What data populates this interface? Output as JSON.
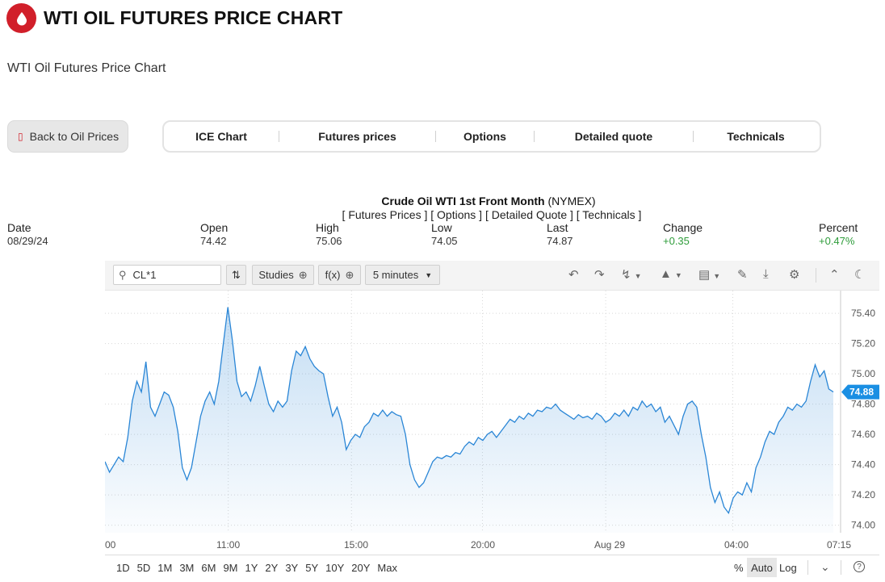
{
  "header": {
    "logo_icon": "oil-drop-icon",
    "title": "WTI OIL FUTURES PRICE CHART",
    "subtitle": "WTI Oil Futures Price Chart"
  },
  "nav": {
    "back_label": "Back to Oil Prices",
    "back_icon": "back-arrow-icon",
    "tabs": [
      "ICE Chart",
      "Futures prices",
      "Options",
      "Detailed quote",
      "Technicals"
    ]
  },
  "quote": {
    "title_bold": "Crude Oil WTI 1st Front Month",
    "title_suffix": "(NYMEX)",
    "links": "[ Futures Prices ] [ Options ] [ Detailed Quote ] [ Technicals ]",
    "columns": [
      {
        "label": "Date",
        "value": "08/29/24"
      },
      {
        "label": "Open",
        "value": "74.42"
      },
      {
        "label": "High",
        "value": "75.06"
      },
      {
        "label": "Low",
        "value": "74.05"
      },
      {
        "label": "Last",
        "value": "74.87"
      },
      {
        "label": "Change",
        "value": "+0.35"
      },
      {
        "label": "Percent",
        "value": "+0.47%"
      }
    ],
    "positive_color": "#2e9c3a"
  },
  "toolbar": {
    "symbol": "CL*1",
    "studies_label": "Studies",
    "fx_label": "f(x)",
    "interval_label": "5 minutes",
    "icons": [
      "search-icon",
      "randomize-icon",
      "add-icon",
      "undo-icon",
      "redo-icon",
      "lightning-icon",
      "chart-type-icon",
      "layout-icon",
      "pencil-icon",
      "download-icon",
      "settings-icon",
      "collapse-icon",
      "dark-mode-icon"
    ]
  },
  "chart_data": {
    "type": "area",
    "ylim": [
      73.95,
      75.55
    ],
    "yticks": [
      "75.40",
      "75.20",
      "75.00",
      "74.80",
      "74.60",
      "74.40",
      "74.20",
      "74.00"
    ],
    "xticks": [
      "00",
      "11:00",
      "15:00",
      "20:00",
      "Aug 29",
      "04:00",
      "07:15"
    ],
    "last_price": "74.88",
    "line_color": "#2a86d6",
    "values": [
      74.42,
      74.35,
      74.4,
      74.45,
      74.42,
      74.58,
      74.82,
      74.95,
      74.88,
      75.08,
      74.78,
      74.72,
      74.8,
      74.88,
      74.86,
      74.78,
      74.62,
      74.38,
      74.3,
      74.38,
      74.55,
      74.72,
      74.82,
      74.88,
      74.8,
      74.95,
      75.2,
      75.44,
      75.22,
      74.95,
      74.85,
      74.88,
      74.82,
      74.92,
      75.05,
      74.92,
      74.8,
      74.75,
      74.82,
      74.78,
      74.82,
      75.02,
      75.15,
      75.12,
      75.18,
      75.1,
      75.05,
      75.02,
      75.0,
      74.85,
      74.72,
      74.78,
      74.68,
      74.5,
      74.56,
      74.6,
      74.58,
      74.65,
      74.68,
      74.74,
      74.72,
      74.76,
      74.72,
      74.75,
      74.73,
      74.72,
      74.6,
      74.4,
      74.3,
      74.25,
      74.28,
      74.35,
      74.42,
      74.45,
      74.44,
      74.46,
      74.45,
      74.48,
      74.47,
      74.52,
      74.55,
      74.53,
      74.58,
      74.56,
      74.6,
      74.62,
      74.58,
      74.62,
      74.66,
      74.7,
      74.68,
      74.72,
      74.7,
      74.74,
      74.72,
      74.76,
      74.75,
      74.78,
      74.77,
      74.8,
      74.76,
      74.74,
      74.72,
      74.7,
      74.73,
      74.71,
      74.72,
      74.7,
      74.74,
      74.72,
      74.68,
      74.7,
      74.74,
      74.72,
      74.76,
      74.72,
      74.78,
      74.76,
      74.82,
      74.78,
      74.8,
      74.75,
      74.78,
      74.68,
      74.72,
      74.66,
      74.6,
      74.72,
      74.8,
      74.82,
      74.78,
      74.6,
      74.45,
      74.25,
      74.15,
      74.22,
      74.12,
      74.08,
      74.18,
      74.22,
      74.2,
      74.28,
      74.22,
      74.38,
      74.45,
      74.55,
      74.62,
      74.6,
      74.68,
      74.72,
      74.78,
      74.76,
      74.8,
      74.78,
      74.82,
      74.95,
      75.06,
      74.98,
      75.02,
      74.9,
      74.88
    ]
  },
  "ranges": {
    "periods": [
      "1D",
      "5D",
      "1M",
      "3M",
      "6M",
      "9M",
      "1Y",
      "2Y",
      "3Y",
      "5Y",
      "10Y",
      "20Y",
      "Max"
    ],
    "scale": [
      "%",
      "Auto",
      "Log"
    ],
    "active_scale": "Auto"
  }
}
